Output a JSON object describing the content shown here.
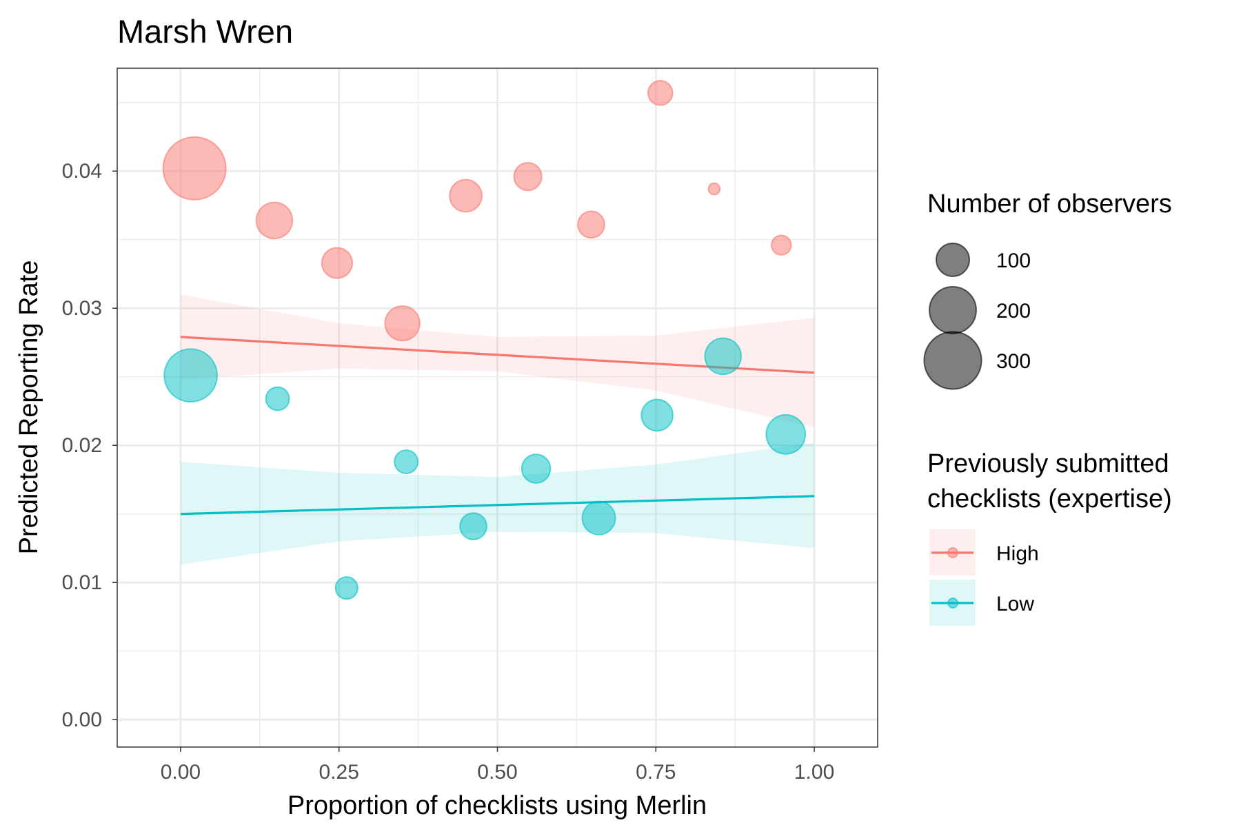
{
  "chart_data": {
    "type": "scatter",
    "title": "Marsh Wren",
    "xlabel": "Proportion of checklists using Merlin",
    "ylabel": "Predicted Reporting Rate",
    "xlim": [
      -0.1,
      1.1
    ],
    "ylim": [
      -0.002,
      0.0475
    ],
    "x_ticks": [
      "0.00",
      "0.25",
      "0.50",
      "0.75",
      "1.00"
    ],
    "x_tick_values": [
      0,
      0.25,
      0.5,
      0.75,
      1.0
    ],
    "y_ticks": [
      "0.00",
      "0.01",
      "0.02",
      "0.03",
      "0.04"
    ],
    "y_tick_values": [
      0,
      0.01,
      0.02,
      0.03,
      0.04
    ],
    "grid": true,
    "legend_position": "right",
    "size_legend": {
      "title": "Number of observers",
      "entries": [
        {
          "label": "100",
          "value": 100
        },
        {
          "label": "200",
          "value": 200
        },
        {
          "label": "300",
          "value": 300
        }
      ]
    },
    "color_legend": {
      "title_line1": "Previously submitted",
      "title_line2": "checklists (expertise)"
    },
    "series": [
      {
        "name": "High",
        "color": "#F8766D",
        "points": [
          {
            "x": 0.022,
            "y": 0.0402,
            "observers": 360
          },
          {
            "x": 0.148,
            "y": 0.0364,
            "observers": 120
          },
          {
            "x": 0.247,
            "y": 0.0333,
            "observers": 85
          },
          {
            "x": 0.35,
            "y": 0.0289,
            "observers": 110
          },
          {
            "x": 0.45,
            "y": 0.0382,
            "observers": 95
          },
          {
            "x": 0.548,
            "y": 0.0396,
            "observers": 70
          },
          {
            "x": 0.648,
            "y": 0.0361,
            "observers": 65
          },
          {
            "x": 0.757,
            "y": 0.0457,
            "observers": 55
          },
          {
            "x": 0.842,
            "y": 0.0387,
            "observers": 12
          },
          {
            "x": 0.948,
            "y": 0.0346,
            "observers": 35
          }
        ],
        "trend": {
          "x": [
            0,
            1
          ],
          "y": [
            0.0279,
            0.0253
          ]
        },
        "ribbon": {
          "x": [
            0,
            0.25,
            0.5,
            0.75,
            1.0
          ],
          "lower": [
            0.0248,
            0.0256,
            0.0254,
            0.024,
            0.0213
          ],
          "upper": [
            0.031,
            0.0289,
            0.0279,
            0.028,
            0.0293
          ]
        }
      },
      {
        "name": "Low",
        "color": "#00BFC4",
        "points": [
          {
            "x": 0.016,
            "y": 0.0251,
            "observers": 255
          },
          {
            "x": 0.153,
            "y": 0.0234,
            "observers": 50
          },
          {
            "x": 0.262,
            "y": 0.0096,
            "observers": 45
          },
          {
            "x": 0.356,
            "y": 0.0188,
            "observers": 50
          },
          {
            "x": 0.462,
            "y": 0.0141,
            "observers": 65
          },
          {
            "x": 0.561,
            "y": 0.0183,
            "observers": 75
          },
          {
            "x": 0.66,
            "y": 0.0147,
            "observers": 100
          },
          {
            "x": 0.752,
            "y": 0.0222,
            "observers": 90
          },
          {
            "x": 0.856,
            "y": 0.0265,
            "observers": 120
          },
          {
            "x": 0.955,
            "y": 0.0208,
            "observers": 140
          }
        ],
        "trend": {
          "x": [
            0,
            1
          ],
          "y": [
            0.015,
            0.0163
          ]
        },
        "ribbon": {
          "x": [
            0,
            0.25,
            0.5,
            0.75,
            1.0
          ],
          "lower": [
            0.0113,
            0.013,
            0.0137,
            0.0136,
            0.0125
          ],
          "upper": [
            0.0188,
            0.018,
            0.0177,
            0.0186,
            0.0202
          ]
        }
      }
    ]
  }
}
